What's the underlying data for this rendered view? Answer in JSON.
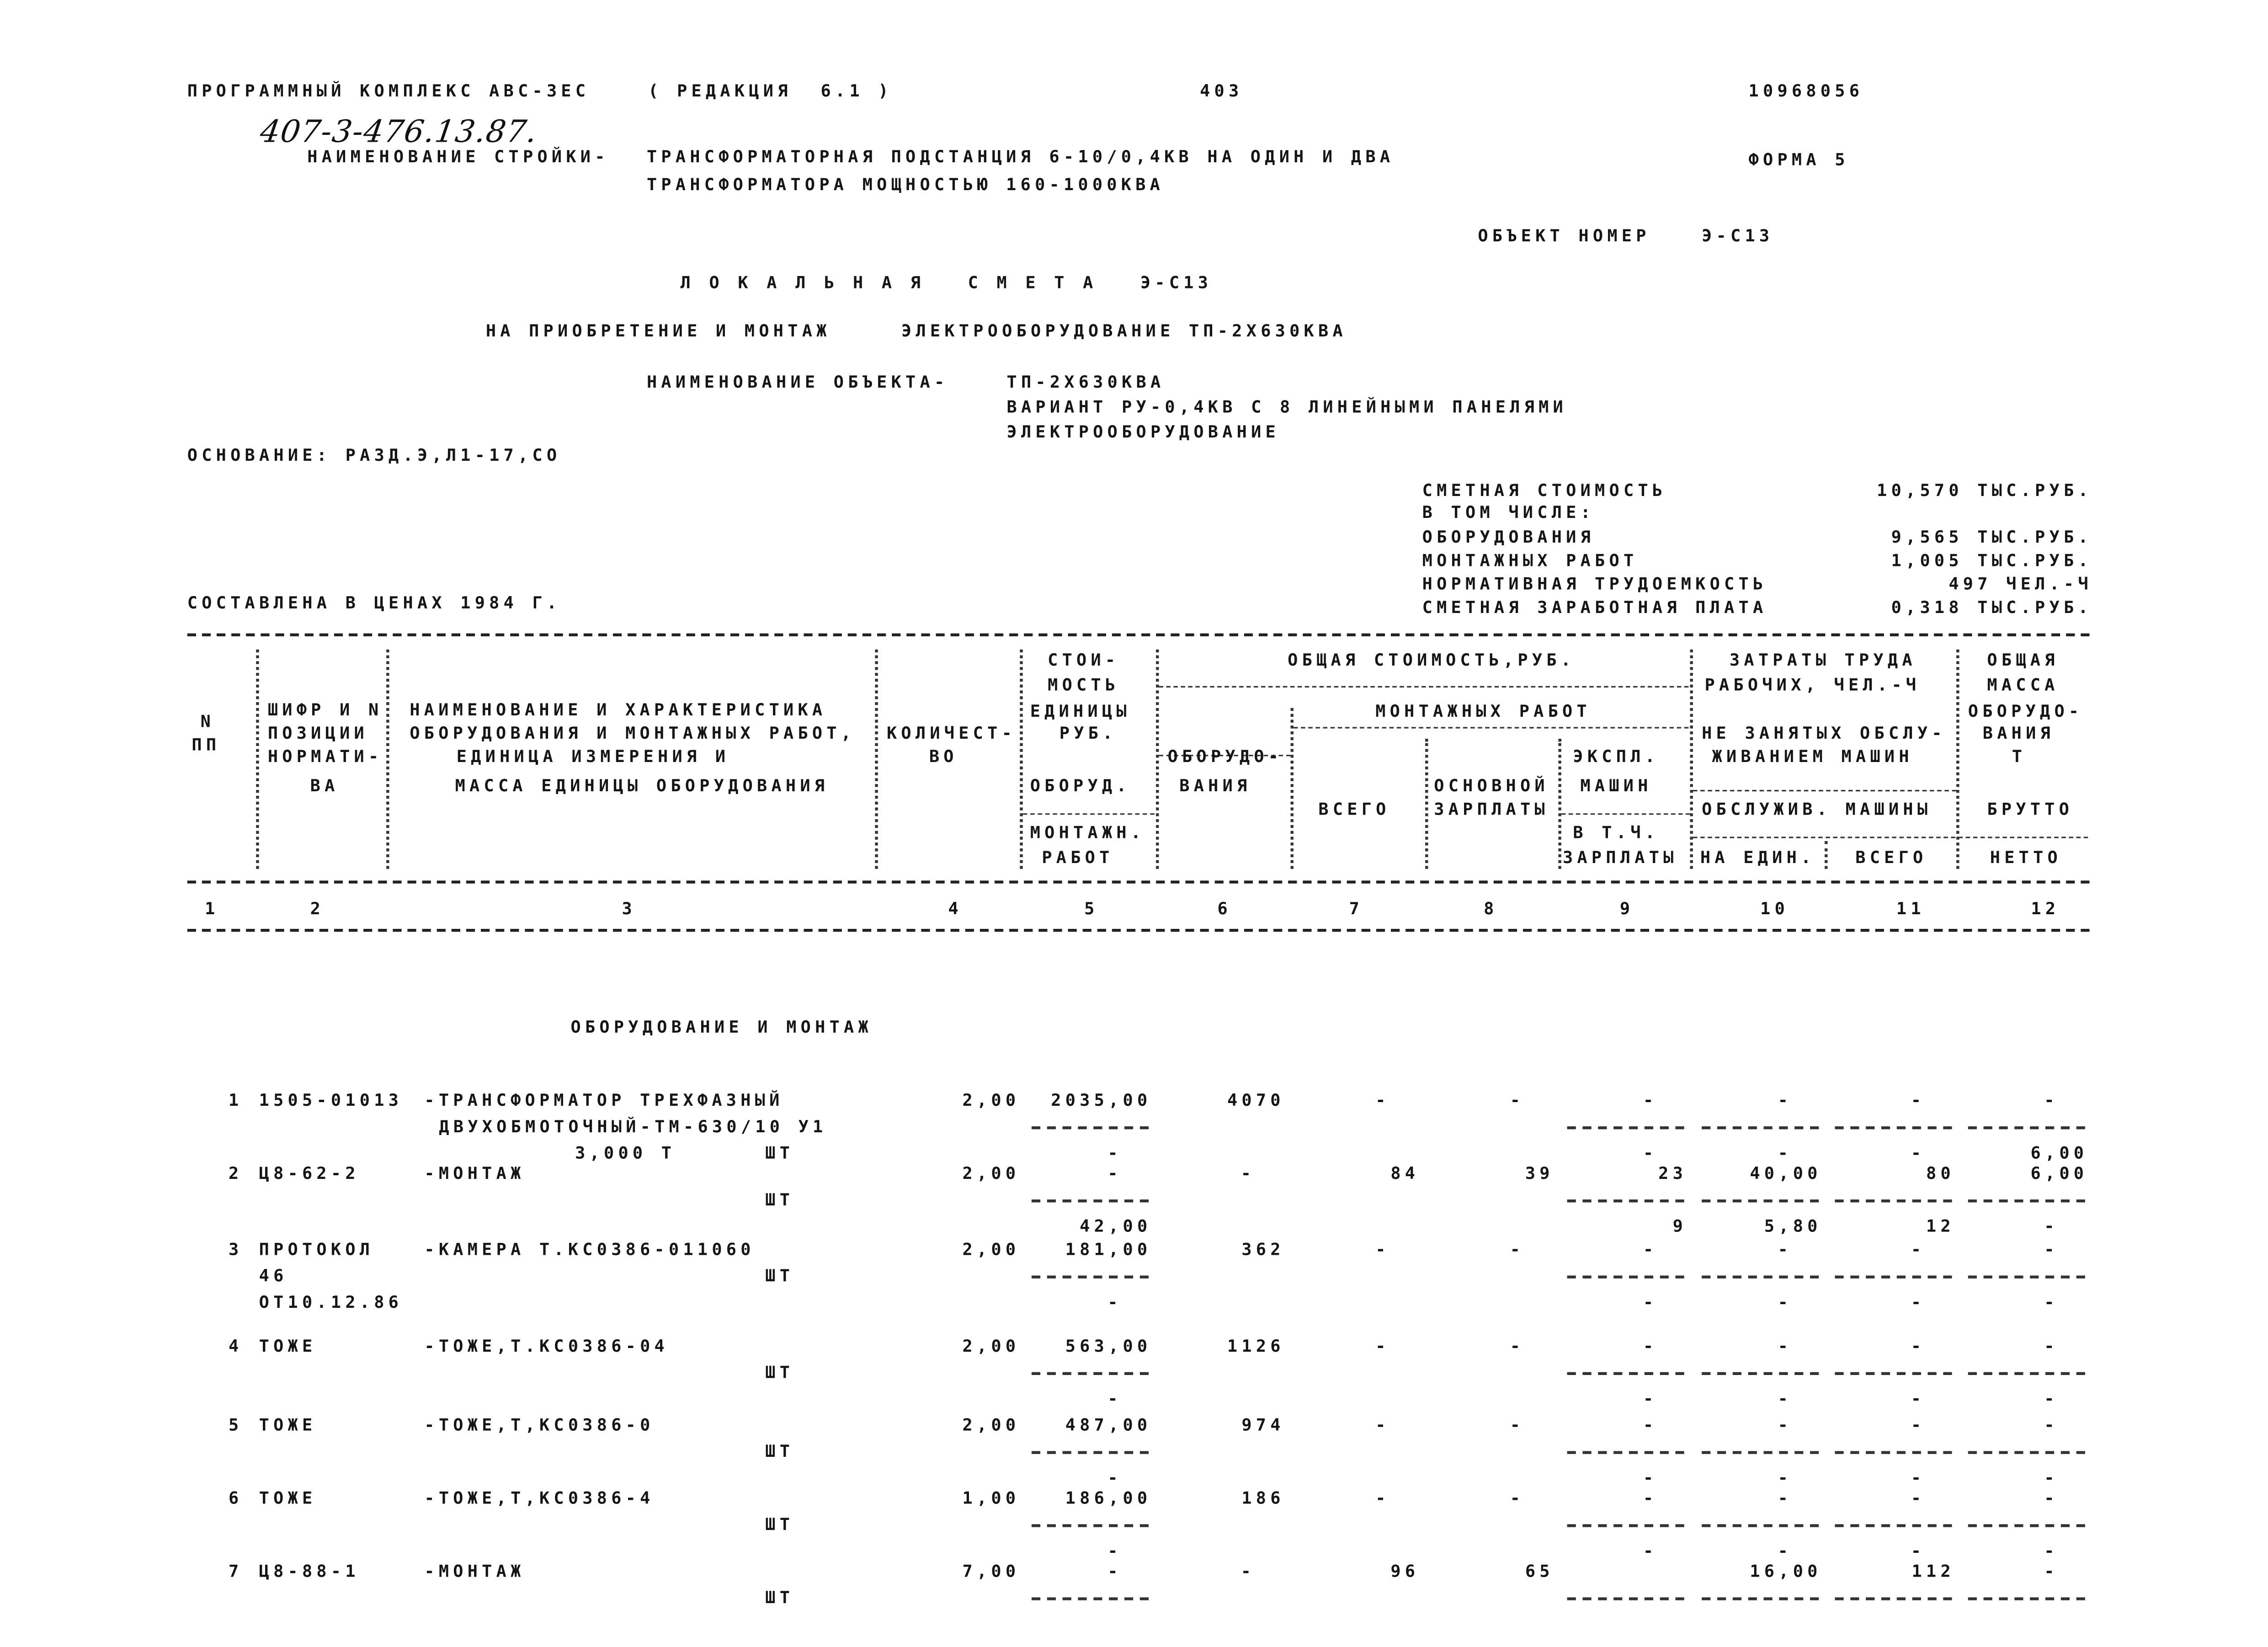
{
  "header": {
    "program": "ПРОГРАММНЫЙ КОМПЛЕКС АВС-3ЕС",
    "edition": "( РЕДАКЦИЯ  6.1 )",
    "page_number": "403",
    "code": "10968056",
    "handwritten_ref": "407-3-476.13.87.",
    "construction_label": "НАИМЕНОВАНИЕ СТРОЙКИ-",
    "construction_name": [
      "ТРАНСФОРМАТОРНАЯ ПОДСТАНЦИЯ 6-10/0,4КВ НА ОДИН И ДВА",
      "ТРАНСФОРМАТОРА МОЩНОСТЬЮ 160-1000КВА"
    ],
    "form": "ФОРМА 5",
    "object_number_label": "ОБЪЕКТ НОМЕР",
    "object_number": "Э-С13",
    "title": "Л О К А Л Ь Н А Я   С М Е Т А   Э-С13",
    "purpose_label": "НА ПРИОБРЕТЕНИЕ И МОНТАЖ",
    "purpose": "ЭЛЕКТРООБОРУДОВАНИЕ ТП-2Х630КВА",
    "object_name_label": "НАИМЕНОВАНИЕ ОБЪЕКТА-",
    "object_name": [
      "ТП-2Х630КВА",
      "ВАРИАНТ РУ-0,4КВ С 8 ЛИНЕЙНЫМИ ПАНЕЛЯМИ",
      "ЭЛЕКТРООБОРУДОВАНИЕ"
    ],
    "basis": "ОСНОВАНИЕ: РАЗД.Э,Л1-17,СО",
    "prices": "СОСТАВЛЕНА В ЦЕНАХ 1984 Г."
  },
  "summary": [
    {
      "label": "СМЕТНАЯ СТОИМОСТЬ",
      "value": "10,570 ТЫС.РУБ."
    },
    {
      "label": "В ТОМ ЧИСЛЕ:",
      "value": ""
    },
    {
      "label": "ОБОРУДОВАНИЯ",
      "value": "9,565 ТЫС.РУБ."
    },
    {
      "label": "МОНТАЖНЫХ РАБОТ",
      "value": "1,005 ТЫС.РУБ."
    },
    {
      "label": "НОРМАТИВНАЯ ТРУДОЕМКОСТЬ",
      "value": "497 ЧЕЛ.-Ч"
    },
    {
      "label": "СМЕТНАЯ ЗАРАБОТНАЯ ПЛАТА",
      "value": "0,318 ТЫС.РУБ."
    }
  ],
  "table_header": {
    "col1": [
      "N",
      "ПП"
    ],
    "col2": [
      "ШИФР И N",
      "ПОЗИЦИИ",
      "НОРМАТИ-",
      "ВА"
    ],
    "col3": [
      "НАИМЕНОВАНИЕ И ХАРАКТЕРИСТИКА",
      "ОБОРУДОВАНИЯ И МОНТАЖНЫХ РАБОТ,",
      "ЕДИНИЦА ИЗМЕРЕНИЯ И",
      "МАССА ЕДИНИЦЫ ОБОРУДОВАНИЯ"
    ],
    "col4": [
      "КОЛИЧЕСТ-",
      "ВО"
    ],
    "col5": [
      "СТОИ-",
      "МОСТЬ",
      "ЕДИНИЦЫ",
      "РУБ.",
      "ОБОРУД.",
      "--------",
      "МОНТАЖН.",
      "РАБОТ"
    ],
    "total_cost_group": "ОБЩАЯ СТОИМОСТЬ,РУБ.",
    "col6": [
      "ОБОРУДО-",
      "ВАНИЯ"
    ],
    "install_group": "МОНТАЖНЫХ РАБОТ",
    "col7": "ВСЕГО",
    "col8": [
      "ОСНОВНОЙ",
      "ЗАРПЛАТЫ"
    ],
    "col9": [
      "ЭКСПЛ.",
      "МАШИН",
      "В Т.Ч.",
      "ЗАРПЛАТЫ"
    ],
    "labor_group": [
      "ЗАТРАТЫ ТРУДА",
      "РАБОЧИХ, ЧЕЛ.-Ч",
      "НЕ ЗАНЯТЫХ ОБСЛУ-",
      "ЖИВАНИЕМ МАШИН",
      "ОБСЛУЖИВ. МАШИНЫ"
    ],
    "col10": "НА ЕДИН.",
    "col11": "ВСЕГО",
    "col12": [
      "ОБЩАЯ",
      "МАССА",
      "ОБОРУДО-",
      "ВАНИЯ",
      "Т",
      "БРУТТО",
      "НЕТТО"
    ],
    "numbers": [
      "1",
      "2",
      "3",
      "4",
      "5",
      "6",
      "7",
      "8",
      "9",
      "10",
      "11",
      "12"
    ]
  },
  "section_title": "ОБОРУДОВАНИЕ И МОНТАЖ",
  "items": [
    {
      "no": "1",
      "code": [
        "1505-01013"
      ],
      "name": [
        "-ТРАНСФОРМАТОР ТРЕХФАЗНЫЙ",
        "ДВУХОБМОТОЧНЫЙ-ТМ-630/10 У1"
      ],
      "mass": "3,000 Т",
      "unit": "ШТ",
      "qty": "2,00",
      "line1": [
        "2035,00",
        "4070",
        "-",
        "-",
        "-",
        "-",
        "-",
        "-"
      ],
      "line3": [
        "-",
        "-",
        "-",
        "-",
        "6,00"
      ],
      "dashes": true
    },
    {
      "no": "2",
      "code": [
        "Ц8-62-2"
      ],
      "name": [
        "-МОНТАЖ"
      ],
      "mass": "",
      "unit": "ШТ",
      "qty": "2,00",
      "line1": [
        "-",
        "-",
        "84",
        "39",
        "23",
        "40,00",
        "80",
        "6,00"
      ],
      "line3": [
        "42,00",
        "9",
        "5,80",
        "12",
        "-"
      ],
      "dashes": true
    },
    {
      "no": "3",
      "code": [
        "ПРОТОКОЛ",
        "46",
        "ОТ10.12.86"
      ],
      "name": [
        "-КАМЕРА Т.КС0386-011060"
      ],
      "mass": "",
      "unit": "ШТ",
      "qty": "2,00",
      "line1": [
        "181,00",
        "362",
        "-",
        "-",
        "-",
        "-",
        "-",
        "-"
      ],
      "line3": [
        "-",
        "-",
        "-",
        "-",
        "-"
      ],
      "dashes": true
    },
    {
      "no": "4",
      "code": [
        "ТОЖЕ"
      ],
      "name": [
        "-ТОЖЕ,Т.КС0386-04"
      ],
      "mass": "",
      "unit": "ШТ",
      "qty": "2,00",
      "line1": [
        "563,00",
        "1126",
        "-",
        "-",
        "-",
        "-",
        "-",
        "-"
      ],
      "line3": [
        "-",
        "-",
        "-",
        "-",
        "-"
      ],
      "dashes": true
    },
    {
      "no": "5",
      "code": [
        "ТОЖЕ"
      ],
      "name": [
        "-ТОЖЕ,Т,КС0386-0"
      ],
      "mass": "",
      "unit": "ШТ",
      "qty": "2,00",
      "line1": [
        "487,00",
        "974",
        "-",
        "-",
        "-",
        "-",
        "-",
        "-"
      ],
      "line3": [
        "-",
        "-",
        "-",
        "-",
        "-"
      ],
      "dashes": true
    },
    {
      "no": "6",
      "code": [
        "ТОЖЕ"
      ],
      "name": [
        "-ТОЖЕ,Т,КС0386-4"
      ],
      "mass": "",
      "unit": "ШТ",
      "qty": "1,00",
      "line1": [
        "186,00",
        "186",
        "-",
        "-",
        "-",
        "-",
        "-",
        "-"
      ],
      "line3": [
        "-",
        "-",
        "-",
        "-",
        "-"
      ],
      "dashes": true
    },
    {
      "no": "7",
      "code": [
        "Ц8-88-1"
      ],
      "name": [
        "-МОНТАЖ"
      ],
      "mass": "",
      "unit": "ШТ",
      "qty": "7,00",
      "line1": [
        "-",
        "-",
        "96",
        "65",
        "",
        "16,00",
        "112",
        "-"
      ],
      "line3": [],
      "dashes": true
    }
  ]
}
